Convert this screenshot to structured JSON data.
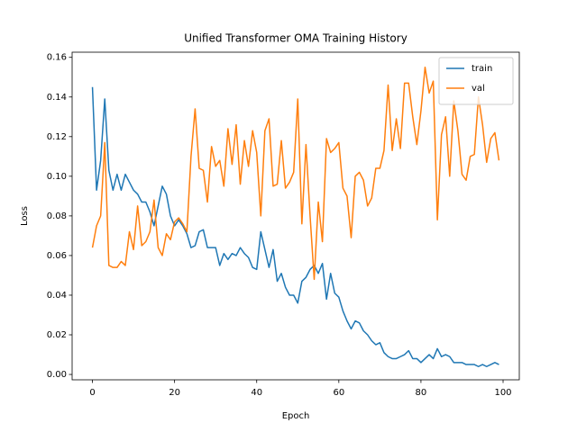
{
  "chart_data": {
    "type": "line",
    "title": "Unified Transformer OMA Training History",
    "x_label": "Epoch",
    "y_label": "Loss",
    "x": [
      0,
      1,
      2,
      3,
      4,
      5,
      6,
      7,
      8,
      9,
      10,
      11,
      12,
      13,
      14,
      15,
      16,
      17,
      18,
      19,
      20,
      21,
      22,
      23,
      24,
      25,
      26,
      27,
      28,
      29,
      30,
      31,
      32,
      33,
      34,
      35,
      36,
      37,
      38,
      39,
      40,
      41,
      42,
      43,
      44,
      45,
      46,
      47,
      48,
      49,
      50,
      51,
      52,
      53,
      54,
      55,
      56,
      57,
      58,
      59,
      60,
      61,
      62,
      63,
      64,
      65,
      66,
      67,
      68,
      69,
      70,
      71,
      72,
      73,
      74,
      75,
      76,
      77,
      78,
      79,
      80,
      81,
      82,
      83,
      84,
      85,
      86,
      87,
      88,
      89,
      90,
      91,
      92,
      93,
      94,
      95,
      96,
      97,
      98,
      99
    ],
    "series": [
      {
        "name": "train",
        "color": "#1f77b4",
        "values": [
          0.145,
          0.093,
          0.108,
          0.139,
          0.103,
          0.093,
          0.101,
          0.093,
          0.101,
          0.097,
          0.093,
          0.091,
          0.087,
          0.087,
          0.082,
          0.075,
          0.085,
          0.095,
          0.091,
          0.08,
          0.075,
          0.078,
          0.075,
          0.071,
          0.064,
          0.065,
          0.072,
          0.073,
          0.064,
          0.064,
          0.064,
          0.055,
          0.061,
          0.058,
          0.061,
          0.06,
          0.064,
          0.061,
          0.059,
          0.054,
          0.053,
          0.072,
          0.063,
          0.054,
          0.063,
          0.047,
          0.051,
          0.044,
          0.04,
          0.04,
          0.036,
          0.047,
          0.049,
          0.053,
          0.055,
          0.051,
          0.056,
          0.038,
          0.051,
          0.041,
          0.039,
          0.032,
          0.027,
          0.023,
          0.027,
          0.026,
          0.022,
          0.02,
          0.017,
          0.015,
          0.016,
          0.011,
          0.009,
          0.008,
          0.008,
          0.009,
          0.01,
          0.012,
          0.008,
          0.008,
          0.006,
          0.008,
          0.01,
          0.008,
          0.013,
          0.009,
          0.01,
          0.009,
          0.006,
          0.006,
          0.006,
          0.005,
          0.005,
          0.005,
          0.004,
          0.005,
          0.004,
          0.005,
          0.006,
          0.005
        ]
      },
      {
        "name": "val",
        "color": "#ff7f0e",
        "values": [
          0.064,
          0.075,
          0.08,
          0.117,
          0.055,
          0.054,
          0.054,
          0.057,
          0.055,
          0.072,
          0.063,
          0.085,
          0.065,
          0.067,
          0.072,
          0.088,
          0.064,
          0.06,
          0.071,
          0.068,
          0.077,
          0.079,
          0.076,
          0.072,
          0.11,
          0.134,
          0.104,
          0.103,
          0.087,
          0.115,
          0.105,
          0.108,
          0.095,
          0.124,
          0.106,
          0.126,
          0.096,
          0.118,
          0.105,
          0.123,
          0.112,
          0.08,
          0.123,
          0.129,
          0.095,
          0.096,
          0.118,
          0.094,
          0.097,
          0.102,
          0.139,
          0.076,
          0.116,
          0.08,
          0.048,
          0.087,
          0.067,
          0.119,
          0.112,
          0.114,
          0.117,
          0.094,
          0.09,
          0.069,
          0.1,
          0.102,
          0.098,
          0.085,
          0.089,
          0.104,
          0.104,
          0.113,
          0.146,
          0.113,
          0.129,
          0.114,
          0.147,
          0.147,
          0.13,
          0.116,
          0.133,
          0.155,
          0.142,
          0.148,
          0.078,
          0.121,
          0.13,
          0.1,
          0.138,
          0.123,
          0.101,
          0.098,
          0.11,
          0.111,
          0.14,
          0.126,
          0.107,
          0.119,
          0.122,
          0.108
        ]
      }
    ],
    "xlim": [
      -4.95,
      103.95
    ],
    "xticks": [
      0,
      20,
      40,
      60,
      80,
      100
    ],
    "ylim": [
      -0.0027,
      0.1626
    ],
    "yticks": [
      {
        "value": 0,
        "label": "0.00"
      },
      0.02,
      0.04,
      0.06,
      0.08,
      {
        "value": 0.1,
        "label": "0.10"
      },
      0.12,
      0.14,
      0.16
    ],
    "legend": "upper right"
  }
}
